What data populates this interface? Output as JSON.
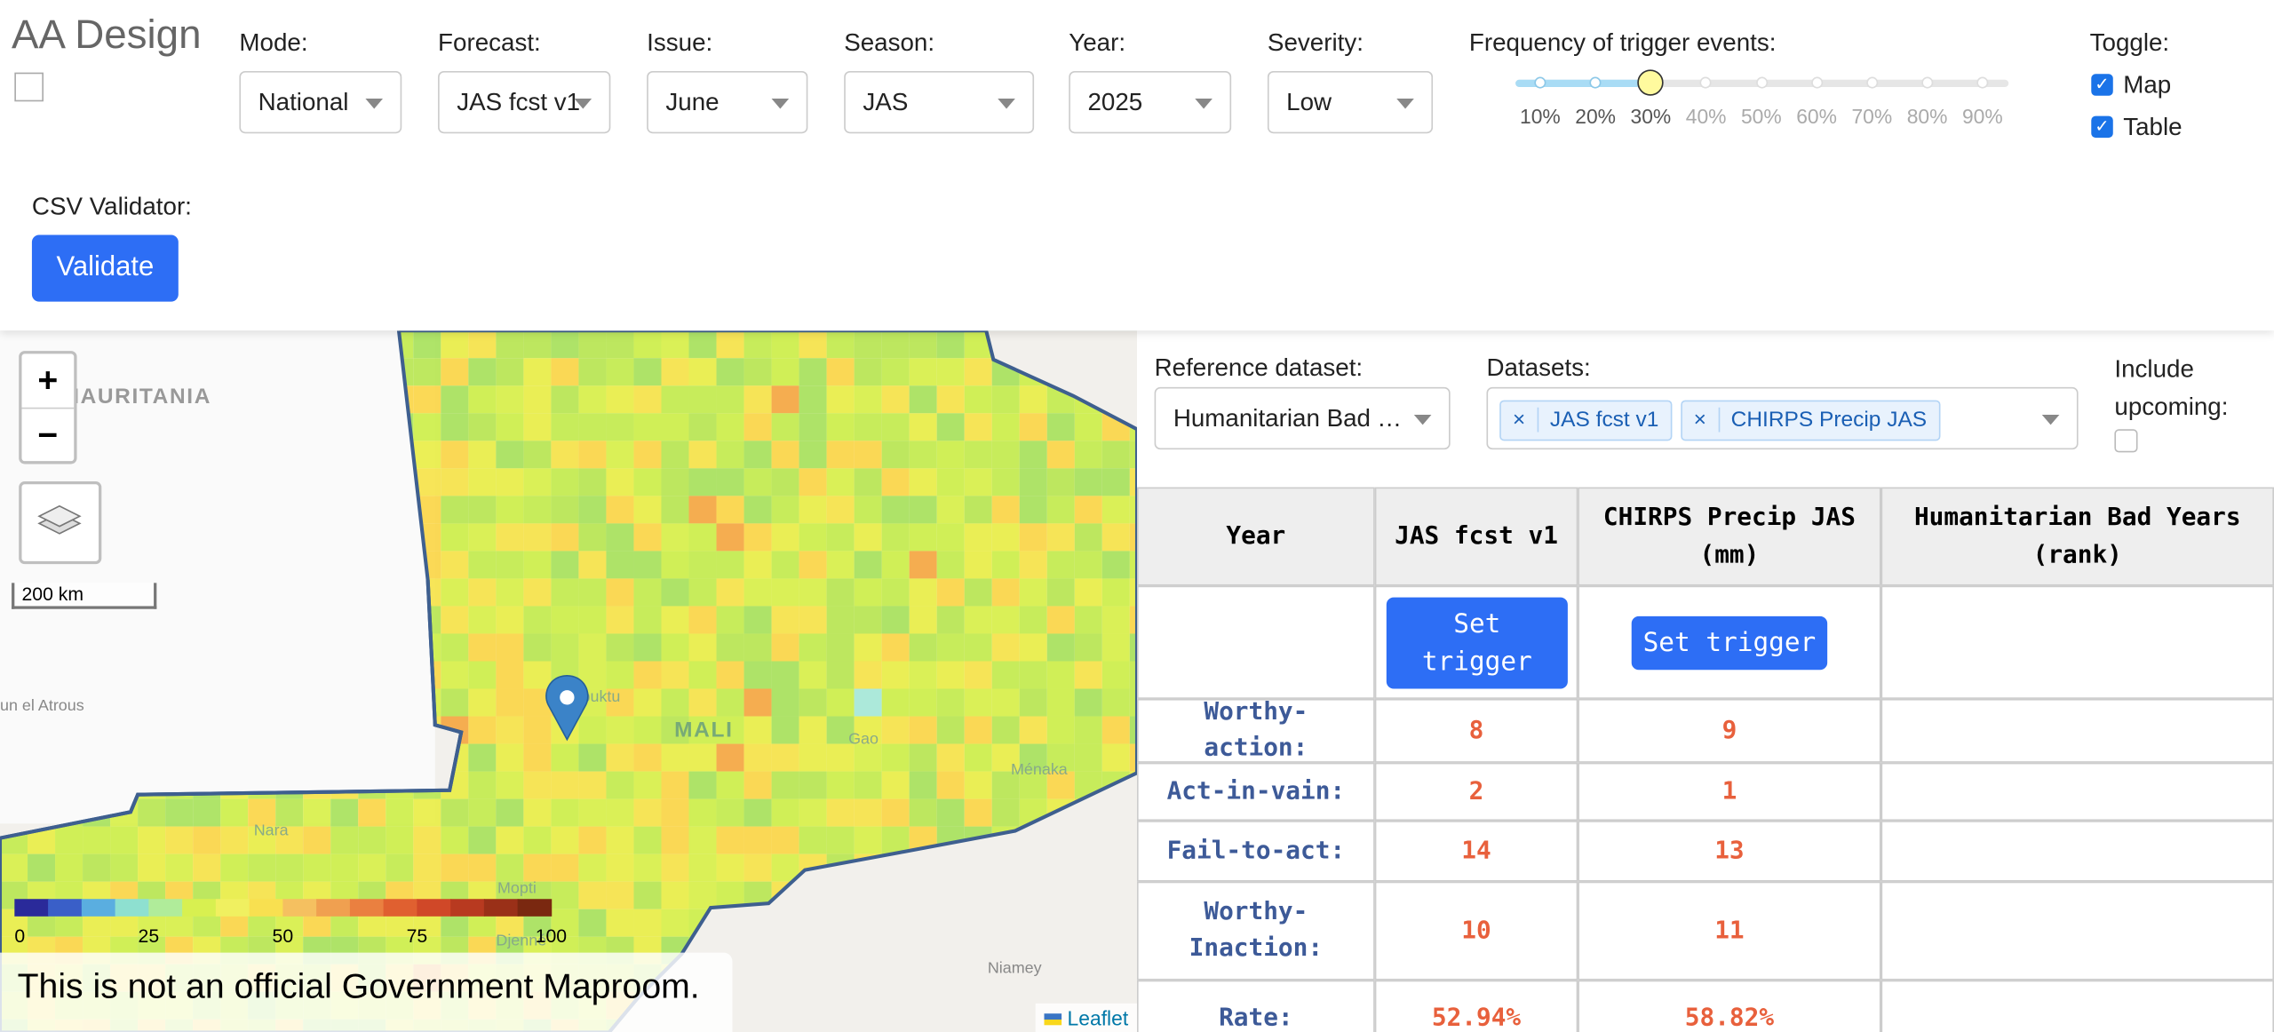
{
  "header": {
    "title": "AA Design"
  },
  "controls": [
    {
      "label": "Mode:",
      "value": "National"
    },
    {
      "label": "Forecast:",
      "value": "JAS fcst v1"
    },
    {
      "label": "Issue:",
      "value": "June"
    },
    {
      "label": "Season:",
      "value": "JAS"
    },
    {
      "label": "Year:",
      "value": "2025"
    },
    {
      "label": "Severity:",
      "value": "Low"
    }
  ],
  "slider": {
    "label": "Frequency of trigger events:",
    "value": 30,
    "ticks": [
      {
        "value": 10,
        "label": "10%"
      },
      {
        "value": 20,
        "label": "20%"
      },
      {
        "value": 30,
        "label": "30%"
      },
      {
        "value": 40,
        "label": "40%"
      },
      {
        "value": 50,
        "label": "50%"
      },
      {
        "value": 60,
        "label": "60%"
      },
      {
        "value": 70,
        "label": "70%"
      },
      {
        "value": 80,
        "label": "80%"
      },
      {
        "value": 90,
        "label": "90%"
      }
    ]
  },
  "toggle": {
    "label": "Toggle:",
    "options": [
      {
        "label": "Map",
        "checked": true
      },
      {
        "label": "Table",
        "checked": true
      }
    ]
  },
  "csv": {
    "label": "CSV Validator:",
    "button": "Validate"
  },
  "map": {
    "places": [
      "MAURITANIA",
      "un el Atrous",
      "Timbuktu",
      "MALI",
      "Gao",
      "Ménaka",
      "Nara",
      "Mopti",
      "Djenné",
      "Niamey"
    ],
    "zoom_in": "+",
    "zoom_out": "−",
    "scale": "200 km",
    "attribution": "Leaflet",
    "colorbar": {
      "range": [
        0,
        100
      ],
      "ticks": [
        0,
        25,
        50,
        75,
        100
      ]
    },
    "disclaimer": "This is not an official Government Maproom."
  },
  "panel": {
    "reference_label": "Reference dataset:",
    "reference_value": "Humanitarian Bad Y…",
    "datasets_label": "Datasets:",
    "datasets": [
      "JAS fcst v1",
      "CHIRPS Precip JAS"
    ],
    "include_label": "Include upcoming:"
  },
  "table": {
    "columns": [
      "Year",
      "JAS fcst v1",
      "CHIRPS Precip JAS (mm)",
      "Humanitarian Bad Years (rank)"
    ],
    "buttons": [
      "Set trigger",
      "Set trigger"
    ],
    "rows": [
      {
        "label": "Worthy-action:",
        "values": [
          "8",
          "9"
        ]
      },
      {
        "label": "Act-in-vain:",
        "values": [
          "2",
          "1"
        ]
      },
      {
        "label": "Fail-to-act:",
        "values": [
          "14",
          "13"
        ]
      },
      {
        "label": "Worthy-Inaction:",
        "values": [
          "10",
          "11"
        ]
      },
      {
        "label": "Rate:",
        "values": [
          "52.94%",
          "58.82%"
        ]
      }
    ]
  }
}
